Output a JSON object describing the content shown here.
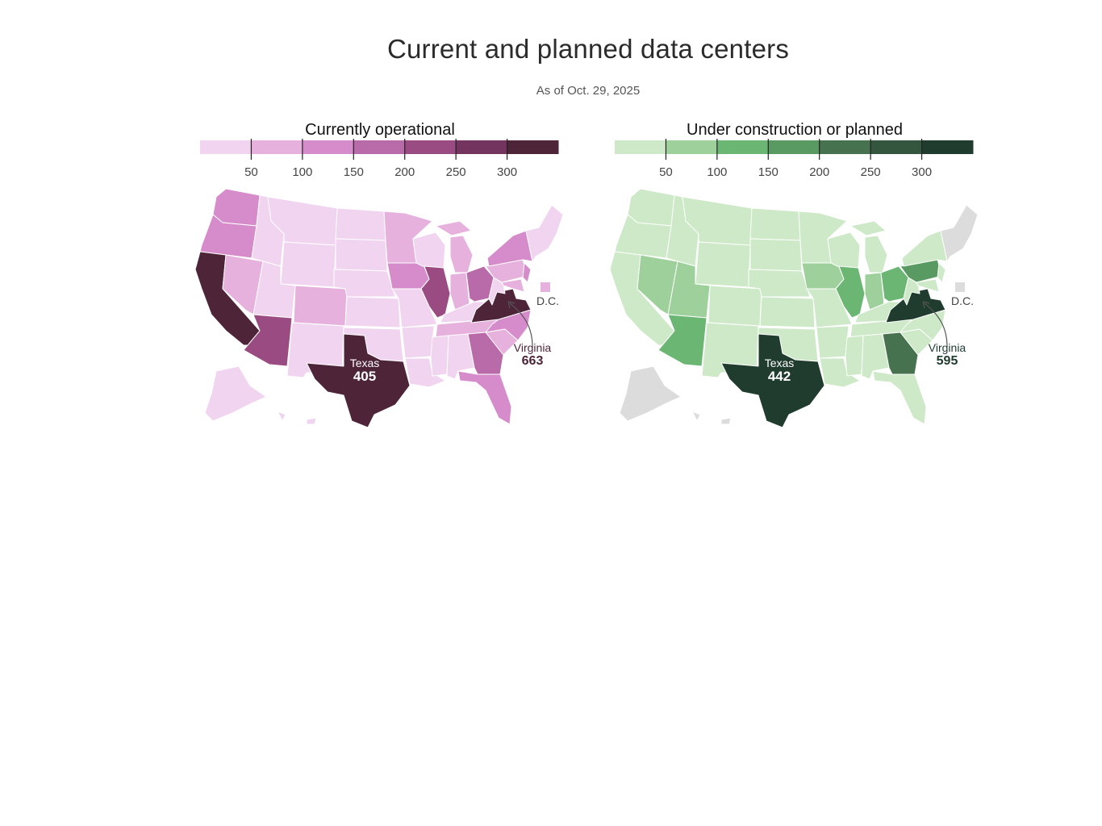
{
  "title": "Current and planned data centers",
  "subtitle": "As of Oct. 29, 2025",
  "maps": [
    {
      "id": "operational",
      "title": "Currently operational",
      "legend_ticks": [
        "50",
        "100",
        "150",
        "200",
        "250",
        "300"
      ],
      "colors": [
        "#f1d4f0",
        "#e6b1dd",
        "#d68ccb",
        "#b96aa8",
        "#9a4c82",
        "#73355f",
        "#4e2538"
      ],
      "na_color": "#dcdcdc",
      "dc_label": "D.C.",
      "annotations": {
        "texas": {
          "name": "Texas",
          "value": "405"
        },
        "virginia": {
          "name": "Virginia",
          "value": "663"
        }
      }
    },
    {
      "id": "planned",
      "title": "Under construction or planned",
      "legend_ticks": [
        "50",
        "100",
        "150",
        "200",
        "250",
        "300"
      ],
      "colors": [
        "#cde9c7",
        "#9dd09b",
        "#6bb673",
        "#589a62",
        "#47724f",
        "#34563f",
        "#1f3c2f"
      ],
      "na_color": "#dcdcdc",
      "dc_label": "D.C.",
      "annotations": {
        "texas": {
          "name": "Texas",
          "value": "442"
        },
        "virginia": {
          "name": "Virginia",
          "value": "595"
        }
      }
    }
  ]
}
